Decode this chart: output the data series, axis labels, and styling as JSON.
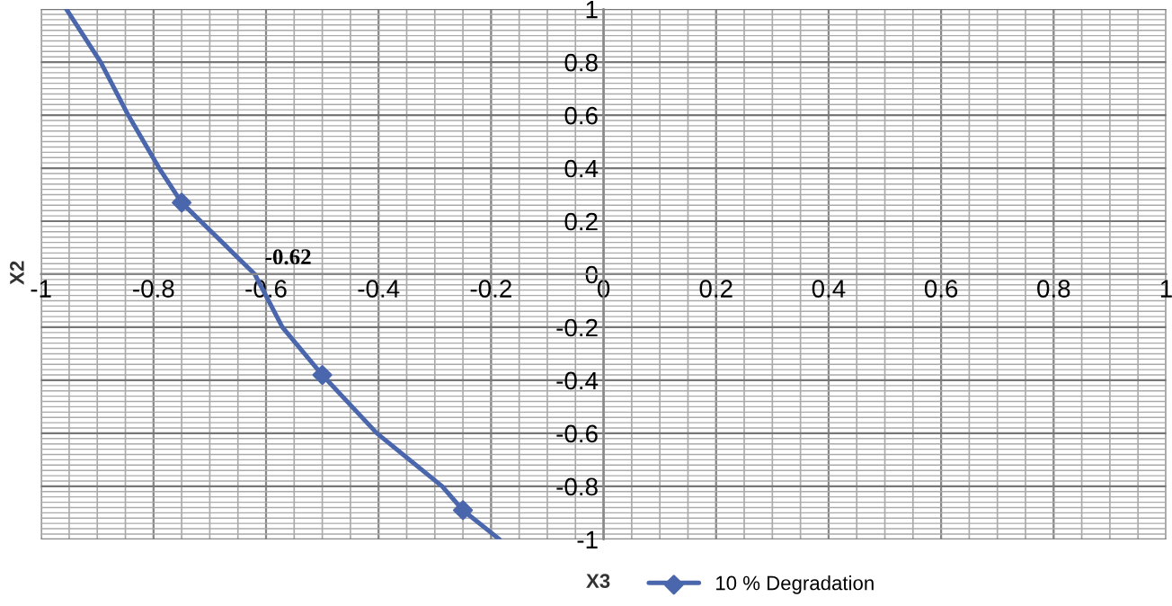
{
  "chart_data": {
    "type": "line",
    "xlabel": "X3",
    "ylabel": "X2",
    "xlim": [
      -1,
      1
    ],
    "ylim": [
      -1,
      1
    ],
    "xticks": [
      -1,
      -0.8,
      -0.6,
      -0.4,
      -0.2,
      0,
      0.2,
      0.4,
      0.6,
      0.8,
      1
    ],
    "yticks": [
      -1,
      -0.8,
      -0.6,
      -0.4,
      -0.2,
      0,
      0.2,
      0.4,
      0.6,
      0.8,
      1
    ],
    "grid": true,
    "legend": "bottom",
    "series": [
      {
        "name": "10 % Degradation",
        "color": "#4a66ac",
        "marker": "none",
        "x": [
          -0.955,
          -0.894,
          -0.845,
          -0.79,
          -0.75,
          -0.62,
          -0.571,
          -0.5,
          -0.403,
          -0.287,
          -0.25,
          -0.185
        ],
        "values": [
          1,
          0.8,
          0.6,
          0.4,
          0.27,
          0,
          -0.2,
          -0.38,
          -0.6,
          -0.8,
          -0.89,
          -1
        ]
      },
      {
        "type": "scatter",
        "color": "#4a66ac",
        "marker": "diamond",
        "x": [
          -0.75,
          -0.5,
          -0.25
        ],
        "values": [
          0.27,
          -0.38,
          -0.89
        ]
      }
    ],
    "annotations": [
      {
        "text": "-0.62",
        "x": -0.62,
        "y": 0
      }
    ]
  }
}
